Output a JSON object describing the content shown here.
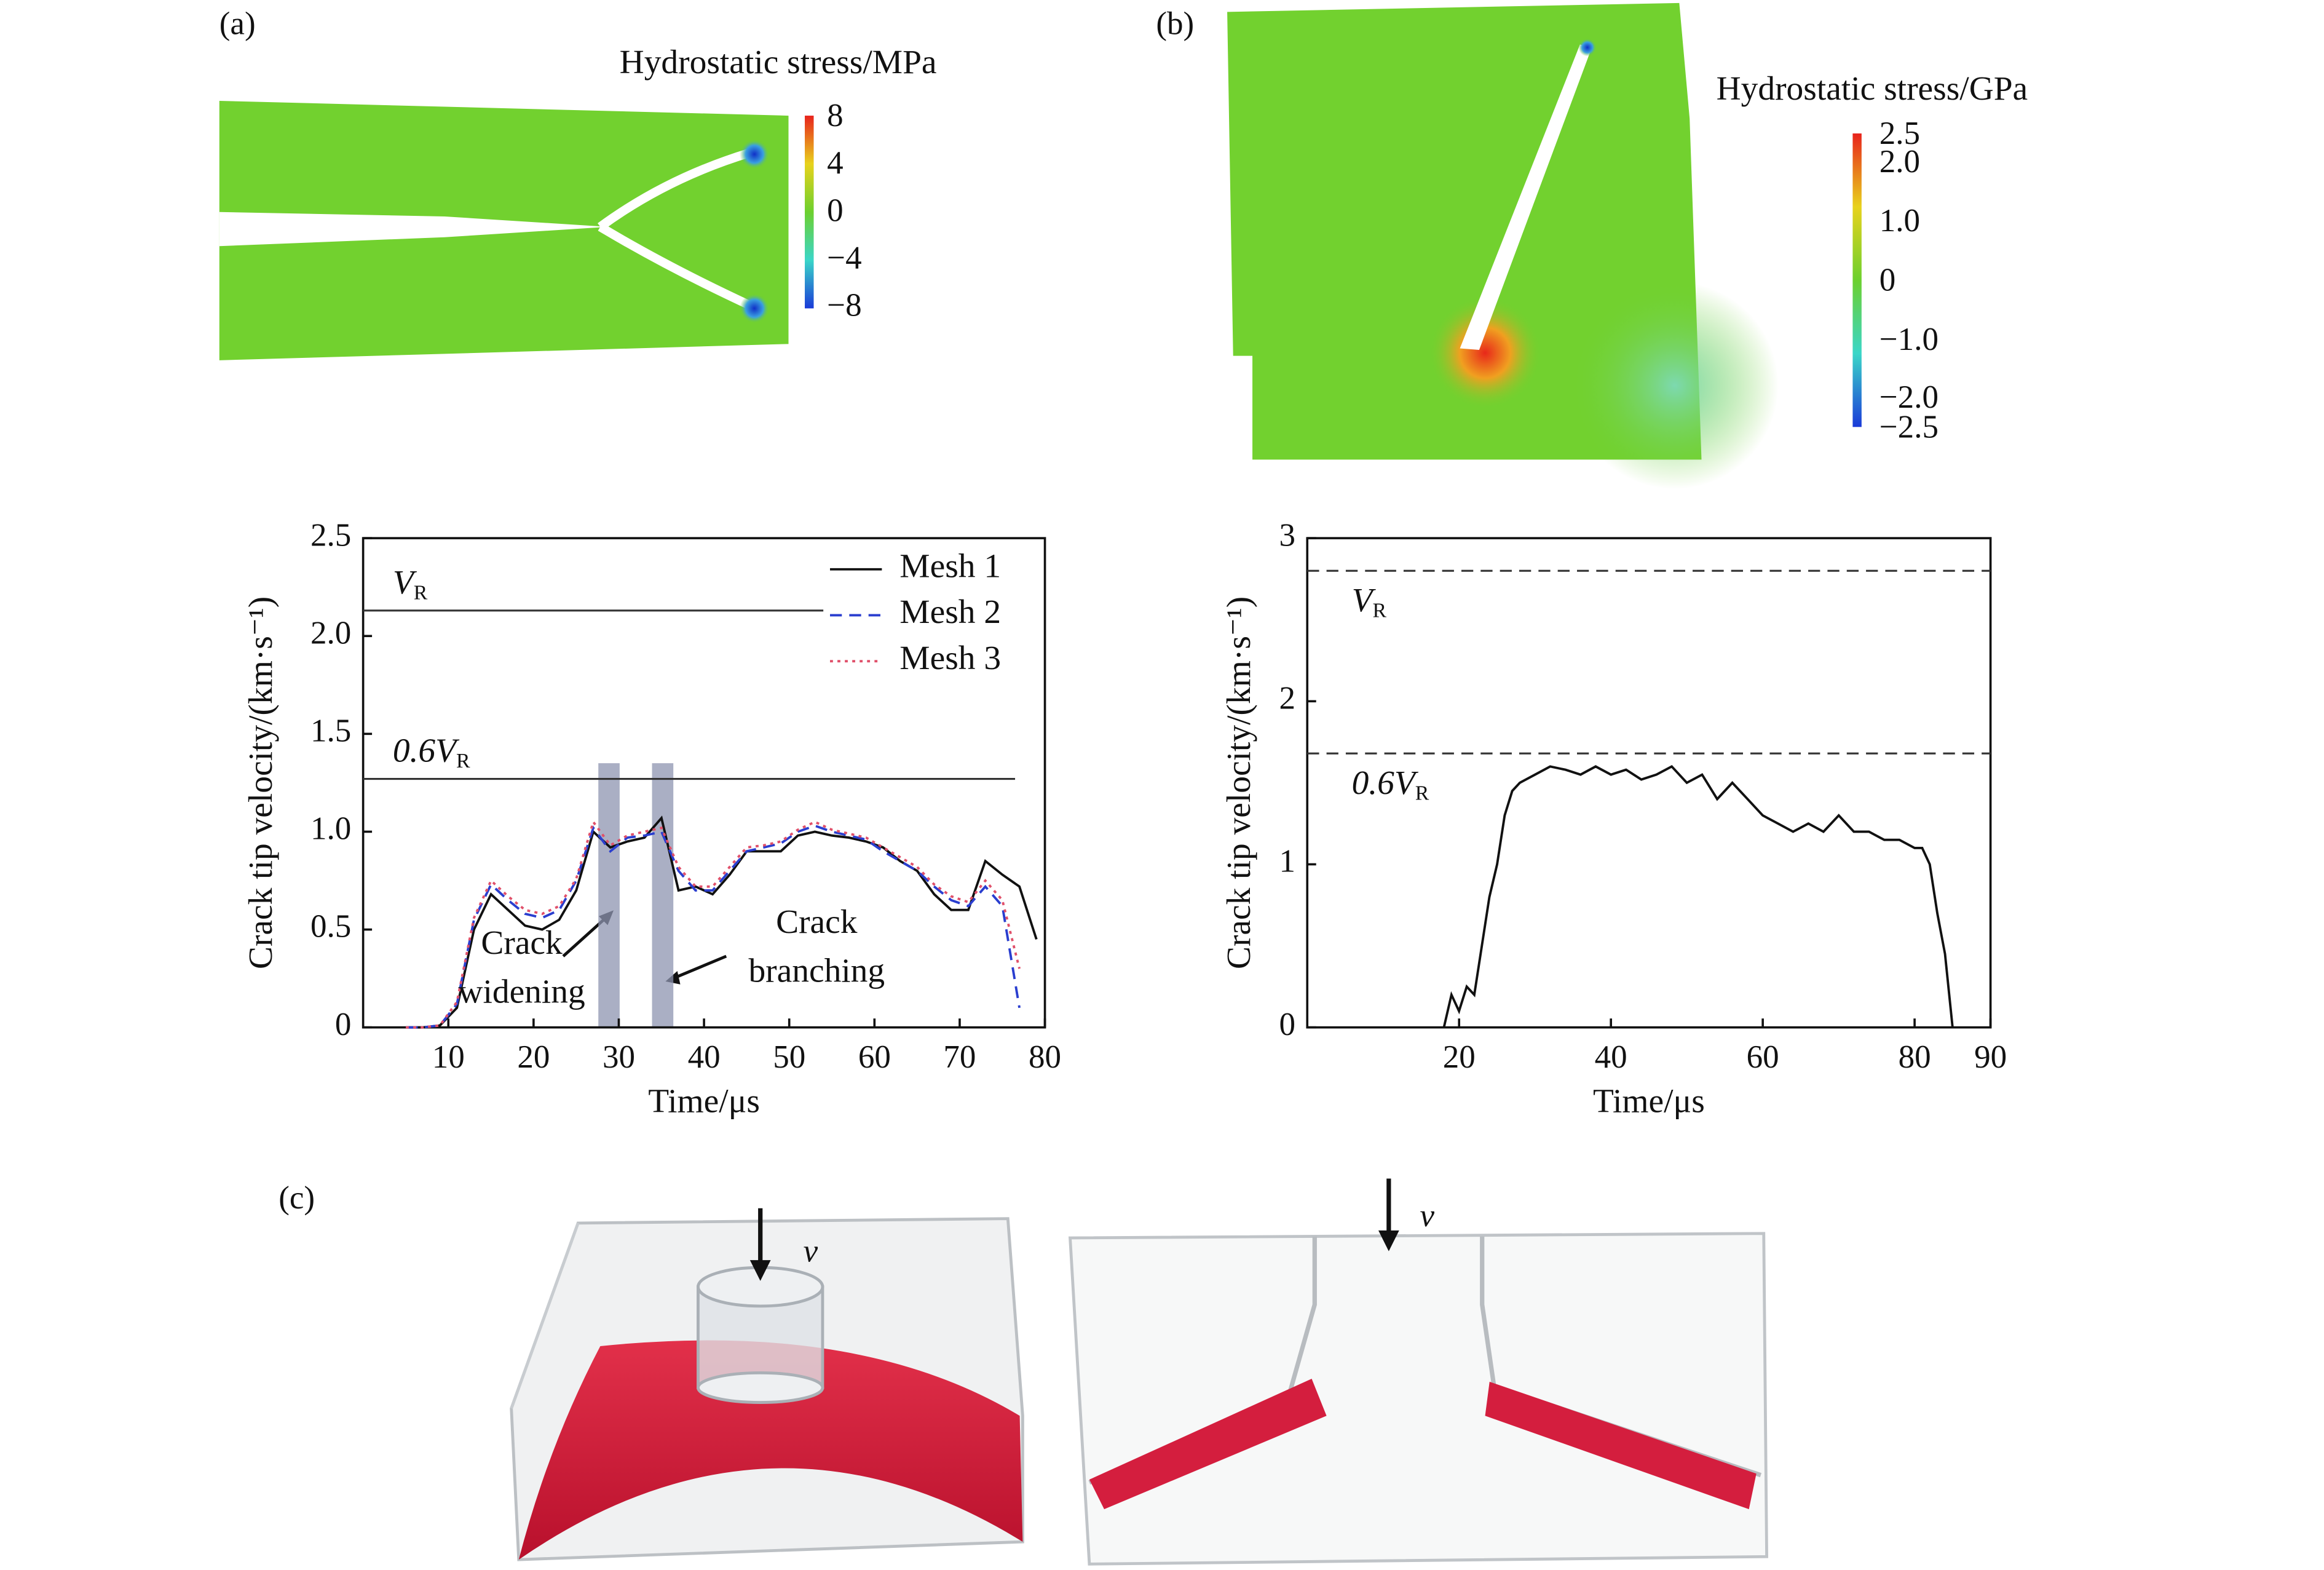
{
  "panel_labels": [
    "(a)",
    "(b)",
    "(c)"
  ],
  "contour_a": {
    "title": "Hydrostatic stress/MPa",
    "colorbar_labels": [
      "8",
      "4",
      "0",
      "−4",
      "−8"
    ]
  },
  "contour_b": {
    "title": "Hydrostatic stress/GPa",
    "colorbar_labels": [
      "2.5",
      "2.0",
      "1.0",
      "0",
      "−1.0",
      "−2.0",
      "−2.5"
    ]
  },
  "part_c": {
    "arrow_labels": [
      "v",
      "v"
    ]
  },
  "chart_data": [
    {
      "type": "line",
      "ylabel": "Crack tip velocity/(km·s⁻¹)",
      "xlabel": "Time/μs",
      "xlim": [
        0,
        80
      ],
      "ylim": [
        0,
        2.5
      ],
      "xticks": [
        10,
        20,
        30,
        40,
        50,
        60,
        70,
        80
      ],
      "yticks": [
        0,
        0.5,
        {
          "value": 1,
          "label": "1.0"
        },
        1.5,
        {
          "value": 2,
          "label": "2.0"
        },
        2.5
      ],
      "legend": "upper right",
      "x": [
        5,
        7,
        9,
        11,
        13,
        15,
        17,
        19,
        21,
        23,
        25,
        27,
        29,
        31,
        33,
        35,
        37,
        39,
        41,
        43,
        45,
        47,
        49,
        51,
        53,
        55,
        57,
        59,
        61,
        63,
        65,
        67,
        69,
        71,
        73,
        75,
        77,
        79
      ],
      "series": [
        {
          "name": "Mesh 1",
          "color": "#111111",
          "style": "solid",
          "values": [
            0,
            0,
            0.01,
            0.1,
            0.5,
            0.68,
            0.6,
            0.52,
            0.5,
            0.55,
            0.7,
            1.0,
            0.92,
            0.95,
            0.97,
            1.07,
            0.7,
            0.72,
            0.68,
            0.78,
            0.9,
            0.9,
            0.9,
            0.98,
            1.0,
            0.98,
            0.97,
            0.95,
            0.92,
            0.85,
            0.8,
            0.68,
            0.6,
            0.6,
            0.85,
            0.78,
            0.72,
            0.45
          ]
        },
        {
          "name": "Mesh 2",
          "color": "#2a3ecf",
          "style": "dashed",
          "values": [
            0,
            0,
            0.01,
            0.12,
            0.55,
            0.73,
            0.65,
            0.58,
            0.56,
            0.6,
            0.75,
            1.02,
            0.9,
            0.97,
            0.98,
            1.0,
            0.8,
            0.7,
            0.7,
            0.8,
            0.9,
            0.92,
            0.94,
            1.0,
            1.03,
            1.0,
            0.98,
            0.96,
            0.9,
            0.85,
            0.8,
            0.72,
            0.65,
            0.62,
            0.72,
            0.62,
            0.1,
            null
          ]
        },
        {
          "name": "Mesh 3",
          "color": "#e0506a",
          "style": "dotted",
          "values": [
            0,
            0,
            0.01,
            0.13,
            0.56,
            0.75,
            0.67,
            0.6,
            0.58,
            0.62,
            0.76,
            1.05,
            0.93,
            0.98,
            1.0,
            1.02,
            0.82,
            0.72,
            0.72,
            0.82,
            0.92,
            0.93,
            0.95,
            1.01,
            1.05,
            1.01,
            0.99,
            0.97,
            0.92,
            0.87,
            0.82,
            0.73,
            0.67,
            0.64,
            0.75,
            0.65,
            0.3,
            null
          ]
        }
      ],
      "reference_lines": [
        {
          "value": 2.13,
          "x_end": 54,
          "label": "V",
          "label_sub": "R",
          "style": "solid"
        },
        {
          "value": 1.27,
          "x_end": 76.5,
          "label": "0.6V",
          "label_sub": "R",
          "style": "solid"
        }
      ],
      "highlight_bands": [
        {
          "x": [
            27.6,
            30.1
          ],
          "top": 1.35
        },
        {
          "x": [
            33.9,
            36.4
          ],
          "top": 1.35
        }
      ],
      "band_color": "#8e94b0",
      "annotations": [
        [
          "Crack",
          "widening"
        ],
        [
          "Crack",
          "branching"
        ]
      ]
    },
    {
      "type": "line",
      "ylabel": "Crack tip velocity/(km·s⁻¹)",
      "xlabel": "Time/μs",
      "xlim": [
        0,
        90
      ],
      "ylim": [
        0,
        3
      ],
      "xticks": [
        20,
        40,
        60,
        80,
        90
      ],
      "yticks": [
        0,
        1,
        2,
        3
      ],
      "x": [
        18,
        19,
        20,
        21,
        22,
        23,
        24,
        25,
        26,
        27,
        28,
        30,
        32,
        34,
        36,
        38,
        40,
        42,
        44,
        46,
        48,
        50,
        52,
        54,
        56,
        58,
        60,
        62,
        64,
        66,
        68,
        70,
        72,
        74,
        76,
        78,
        80,
        81,
        82,
        83,
        84,
        85
      ],
      "series": [
        {
          "color": "#111111",
          "style": "solid",
          "values": [
            0,
            0.2,
            0.1,
            0.25,
            0.2,
            0.5,
            0.8,
            1.0,
            1.3,
            1.45,
            1.5,
            1.55,
            1.6,
            1.58,
            1.55,
            1.6,
            1.55,
            1.58,
            1.52,
            1.55,
            1.6,
            1.5,
            1.55,
            1.4,
            1.5,
            1.4,
            1.3,
            1.25,
            1.2,
            1.25,
            1.2,
            1.3,
            1.2,
            1.2,
            1.15,
            1.15,
            1.1,
            1.1,
            1.0,
            0.7,
            0.45,
            0
          ]
        }
      ],
      "reference_lines": [
        {
          "value": 2.8,
          "label": "V",
          "label_sub": "R",
          "style": "dashed"
        },
        {
          "value": 1.68,
          "label": "0.6V",
          "label_sub": "R",
          "style": "dashed"
        }
      ]
    }
  ]
}
